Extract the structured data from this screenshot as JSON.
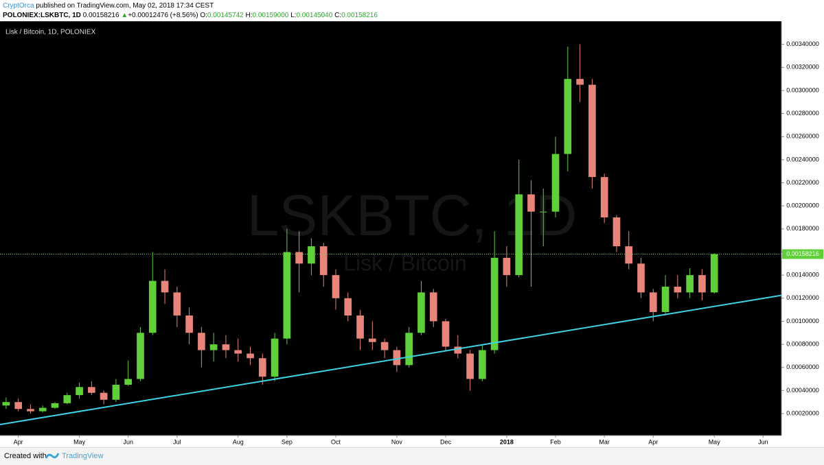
{
  "header": {
    "author": "CryptOrca",
    "published": "published on TradingView.com, May 02, 2018 17:34 CEST",
    "symbol": "POLONIEX:LSKBTC, 1D",
    "price": "0.00158216",
    "arrow": "▲",
    "change": "+0.00012476 (+8.56%)",
    "ohlc": [
      {
        "label": "O:",
        "value": "0.00145742"
      },
      {
        "label": "H:",
        "value": "0.00159000"
      },
      {
        "label": "L:",
        "value": "0.00145040"
      },
      {
        "label": "C:",
        "value": "0.00158216"
      }
    ]
  },
  "chart_data": {
    "type": "candlestick",
    "title": "Lisk / Bitcoin, 1D, POLONIEX",
    "watermark_symbol": "LSKBTC, 1D",
    "watermark_name": "Lisk / Bitcoin",
    "categories": [
      null,
      "Apr",
      null,
      null,
      null,
      null,
      "May",
      null,
      null,
      null,
      "Jun",
      null,
      null,
      null,
      "Jul",
      null,
      null,
      null,
      null,
      "Aug",
      null,
      null,
      null,
      "Sep",
      null,
      null,
      null,
      "Oct",
      null,
      null,
      null,
      null,
      "Nov",
      null,
      null,
      null,
      "Dec",
      null,
      null,
      null,
      null,
      "2018",
      null,
      null,
      null,
      "Feb",
      null,
      null,
      null,
      "Mar",
      null,
      null,
      null,
      "Apr",
      null,
      null,
      null,
      null,
      "May",
      null,
      null,
      null,
      "Jun",
      null
    ],
    "open": [
      0.00027,
      0.0003,
      0.00024,
      0.00022,
      0.00025,
      0.00029,
      0.00036,
      0.00043,
      0.00038,
      0.00032,
      0.00045,
      0.0005,
      0.0009,
      0.00135,
      0.00125,
      0.00105,
      0.0009,
      0.00075,
      0.0008,
      0.00075,
      0.00072,
      0.00068,
      0.00052,
      0.00085,
      0.0016,
      0.0015,
      0.00165,
      0.0014,
      0.0012,
      0.00105,
      0.00085,
      0.00082,
      0.00075,
      0.00062,
      0.0009,
      0.00125,
      0.001,
      0.00078,
      0.00072,
      0.0005,
      0.00075,
      0.00155,
      0.0014,
      0.0021,
      0.00195,
      0.00195,
      0.00245,
      0.0031,
      0.00305,
      0.00225,
      0.0019,
      0.00165,
      0.0015,
      0.00125,
      0.00108,
      0.0013,
      0.00125,
      0.0014,
      0.00125,
      null,
      null,
      null,
      null,
      null
    ],
    "high": [
      0.00034,
      0.00033,
      0.00028,
      0.00027,
      0.0003,
      0.00038,
      0.00047,
      0.00048,
      0.0004,
      0.0005,
      0.00066,
      0.00095,
      0.0016,
      0.00145,
      0.0013,
      0.00112,
      0.00095,
      0.0009,
      0.00088,
      0.00085,
      0.00078,
      0.00072,
      0.0009,
      0.0018,
      0.00178,
      0.00172,
      0.00168,
      0.00145,
      0.00125,
      0.0011,
      0.001,
      0.00085,
      0.00078,
      0.00095,
      0.00135,
      0.00128,
      0.00102,
      0.00088,
      0.00075,
      0.0008,
      0.00178,
      0.00165,
      0.0024,
      0.00222,
      0.00215,
      0.0026,
      0.00338,
      0.0034,
      0.0031,
      0.00228,
      0.00192,
      0.00178,
      0.00155,
      0.00128,
      0.0014,
      0.0014,
      0.00146,
      0.00145,
      0.00159,
      null,
      null,
      null,
      null,
      null
    ],
    "low": [
      0.00024,
      0.00022,
      0.0002,
      0.00021,
      0.00024,
      0.00028,
      0.00033,
      0.00036,
      0.00028,
      0.0003,
      0.00044,
      0.00048,
      0.00088,
      0.00115,
      0.00095,
      0.0008,
      0.0006,
      0.00065,
      0.00068,
      0.00065,
      0.00062,
      0.00045,
      0.00048,
      0.0008,
      0.00125,
      0.0014,
      0.0013,
      0.0011,
      0.001,
      0.00075,
      0.00075,
      0.00068,
      0.00056,
      0.0006,
      0.00088,
      0.00095,
      0.00075,
      0.00068,
      0.0004,
      0.00048,
      0.00072,
      0.0013,
      0.00138,
      0.0013,
      0.00165,
      0.0019,
      0.0023,
      0.0029,
      0.00215,
      0.00185,
      0.0016,
      0.00145,
      0.0012,
      0.001,
      0.00105,
      0.0012,
      0.0012,
      0.00118,
      0.00124,
      null,
      null,
      null,
      null,
      null
    ],
    "close": [
      0.0003,
      0.00024,
      0.00022,
      0.00025,
      0.00029,
      0.00036,
      0.00043,
      0.00038,
      0.00032,
      0.00045,
      0.0005,
      0.0009,
      0.00135,
      0.00125,
      0.00105,
      0.0009,
      0.00075,
      0.0008,
      0.00075,
      0.00072,
      0.00068,
      0.00052,
      0.00085,
      0.0016,
      0.0015,
      0.00165,
      0.0014,
      0.0012,
      0.00105,
      0.00085,
      0.00082,
      0.00075,
      0.00062,
      0.0009,
      0.00125,
      0.001,
      0.00078,
      0.00072,
      0.0005,
      0.00075,
      0.00155,
      0.0014,
      0.0021,
      0.00195,
      0.00195,
      0.00245,
      0.0031,
      0.00305,
      0.00225,
      0.0019,
      0.00165,
      0.0015,
      0.00125,
      0.00108,
      0.0013,
      0.00125,
      0.0014,
      0.00125,
      0.00158216,
      null,
      null,
      null,
      null,
      null
    ],
    "up_color": "#5fcf3a",
    "down_color": "#e8857a",
    "background": "#000000",
    "ylim": [
      1e-05,
      0.0036
    ],
    "yticks": [
      {
        "value": 0.0002,
        "label": "0.00020000"
      },
      {
        "value": 0.0004,
        "label": "0.00040000"
      },
      {
        "value": 0.0006,
        "label": "0.00060000"
      },
      {
        "value": 0.0008,
        "label": "0.00080000"
      },
      {
        "value": 0.001,
        "label": "0.00100000"
      },
      {
        "value": 0.0012,
        "label": "0.00120000"
      },
      {
        "value": 0.0014,
        "label": "0.00140000"
      },
      {
        "value": 0.0016,
        "label": "0.00160000"
      },
      {
        "value": 0.0018,
        "label": "0.00180000"
      },
      {
        "value": 0.002,
        "label": "0.00200000"
      },
      {
        "value": 0.0022,
        "label": "0.00220000"
      },
      {
        "value": 0.0024,
        "label": "0.00240000"
      },
      {
        "value": 0.0026,
        "label": "0.00260000"
      },
      {
        "value": 0.0028,
        "label": "0.00280000"
      },
      {
        "value": 0.003,
        "label": "0.00300000"
      },
      {
        "value": 0.0032,
        "label": "0.00320000"
      },
      {
        "value": 0.0034,
        "label": "0.00340000"
      }
    ],
    "grid": false,
    "trendline": {
      "color": "#3fd3e6",
      "values": [
        0.000105,
        0.001225
      ]
    },
    "last_price": {
      "value": 0.00158216,
      "label": "0.00158216",
      "color": "#5fcf3a"
    }
  },
  "footer": {
    "created": "Created with",
    "brand": "TradingView"
  }
}
